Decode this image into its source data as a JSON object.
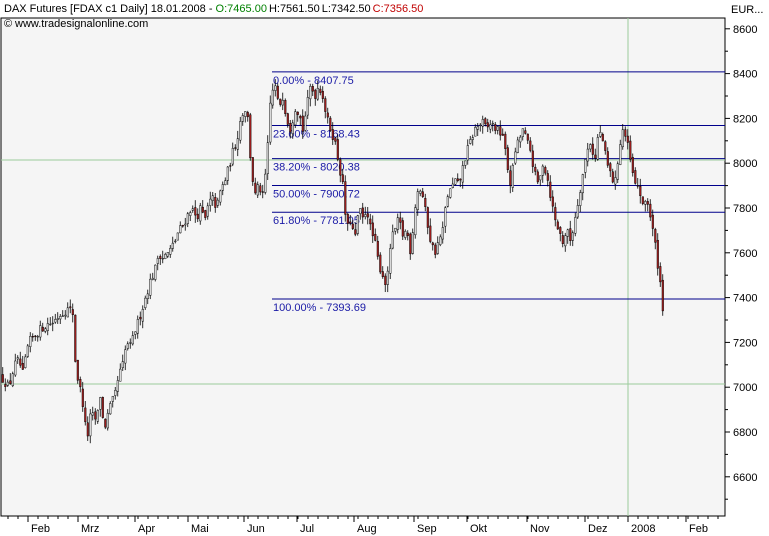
{
  "header": {
    "instrument": "DAX Futures [FDAX c1  Daily] 18.01.2008 - ",
    "open_label": "O:",
    "open": "7465.00",
    "high_label": "H:",
    "high": "7561.50",
    "low_label": "L:",
    "low": "7342.50",
    "close_label": "C:",
    "close": "7356.50",
    "watermark": "www.tradesignalonline.com",
    "currency": "EUR..."
  },
  "colors": {
    "up": "#ffffff",
    "down": "#b22222",
    "fib": "#00008b",
    "label": "#1a1aa6",
    "plot_bg": "#f5f5f5",
    "grid": "#9ccc9c"
  },
  "chart_data": {
    "type": "candlestick",
    "title": "DAX Futures [FDAX c1  Daily]",
    "ylim": [
      6400,
      8650
    ],
    "y_ticks": [
      6600,
      6800,
      7000,
      7200,
      7400,
      7600,
      7800,
      8000,
      8200,
      8400,
      8600
    ],
    "x_ticks": [
      "Feb",
      "Mrz",
      "Apr",
      "Mai",
      "Jun",
      "Jul",
      "Aug",
      "Sep",
      "Okt",
      "Nov",
      "Dez",
      "2008",
      "Feb"
    ],
    "grid_lines": [
      7000,
      8000
    ],
    "fibonacci": [
      {
        "label": "0.00% - 8407.75",
        "value": 8407.75
      },
      {
        "label": "23.60% - 8168.43",
        "value": 8168.43
      },
      {
        "label": "38.20% - 8020.38",
        "value": 8020.38
      },
      {
        "label": "50.00% - 7900.72",
        "value": 7900.72
      },
      {
        "label": "61.80% - 7781.05",
        "value": 7781.05
      },
      {
        "label": "100.00% - 7393.69",
        "value": 7393.69
      }
    ],
    "path": [
      [
        0,
        7050
      ],
      [
        8,
        7000
      ],
      [
        14,
        7100
      ],
      [
        18,
        7120
      ],
      [
        22,
        7060
      ],
      [
        28,
        7200
      ],
      [
        34,
        7230
      ],
      [
        40,
        7260
      ],
      [
        46,
        7280
      ],
      [
        52,
        7290
      ],
      [
        58,
        7320
      ],
      [
        64,
        7340
      ],
      [
        68,
        7350
      ],
      [
        72,
        7330
      ],
      [
        75,
        7080
      ],
      [
        80,
        6980
      ],
      [
        83,
        6900
      ],
      [
        86,
        6760
      ],
      [
        90,
        6880
      ],
      [
        96,
        6850
      ],
      [
        100,
        6980
      ],
      [
        103,
        6800
      ],
      [
        106,
        6860
      ],
      [
        110,
        6920
      ],
      [
        114,
        6960
      ],
      [
        118,
        7050
      ],
      [
        122,
        7100
      ],
      [
        126,
        7200
      ],
      [
        130,
        7180
      ],
      [
        134,
        7250
      ],
      [
        138,
        7300
      ],
      [
        142,
        7360
      ],
      [
        146,
        7420
      ],
      [
        150,
        7480
      ],
      [
        154,
        7520
      ],
      [
        158,
        7600
      ],
      [
        162,
        7580
      ],
      [
        168,
        7600
      ],
      [
        174,
        7650
      ],
      [
        178,
        7700
      ],
      [
        182,
        7720
      ],
      [
        186,
        7760
      ],
      [
        190,
        7800
      ],
      [
        196,
        7760
      ],
      [
        200,
        7800
      ],
      [
        204,
        7740
      ],
      [
        208,
        7820
      ],
      [
        212,
        7840
      ],
      [
        216,
        7800
      ],
      [
        220,
        7880
      ],
      [
        224,
        7920
      ],
      [
        228,
        7980
      ],
      [
        232,
        8050
      ],
      [
        236,
        8100
      ],
      [
        240,
        8200
      ],
      [
        244,
        8250
      ],
      [
        247,
        8200
      ],
      [
        250,
        8000
      ],
      [
        254,
        7850
      ],
      [
        258,
        7900
      ],
      [
        262,
        7850
      ],
      [
        266,
        8000
      ],
      [
        270,
        8300
      ],
      [
        274,
        8350
      ],
      [
        278,
        8250
      ],
      [
        282,
        8300
      ],
      [
        286,
        8200
      ],
      [
        290,
        8150
      ],
      [
        294,
        8250
      ],
      [
        298,
        8230
      ],
      [
        302,
        8150
      ],
      [
        306,
        8250
      ],
      [
        310,
        8350
      ],
      [
        314,
        8300
      ],
      [
        318,
        8350
      ],
      [
        322,
        8300
      ],
      [
        326,
        8200
      ],
      [
        330,
        8150
      ],
      [
        334,
        8100
      ],
      [
        338,
        8000
      ],
      [
        342,
        7900
      ],
      [
        346,
        7700
      ],
      [
        350,
        7750
      ],
      [
        354,
        7650
      ],
      [
        358,
        7800
      ],
      [
        362,
        7750
      ],
      [
        366,
        7800
      ],
      [
        370,
        7700
      ],
      [
        374,
        7650
      ],
      [
        378,
        7550
      ],
      [
        382,
        7500
      ],
      [
        386,
        7450
      ],
      [
        390,
        7650
      ],
      [
        394,
        7700
      ],
      [
        398,
        7750
      ],
      [
        402,
        7680
      ],
      [
        406,
        7700
      ],
      [
        410,
        7600
      ],
      [
        414,
        7800
      ],
      [
        418,
        7900
      ],
      [
        422,
        7850
      ],
      [
        426,
        7750
      ],
      [
        430,
        7650
      ],
      [
        434,
        7600
      ],
      [
        438,
        7650
      ],
      [
        442,
        7700
      ],
      [
        446,
        7850
      ],
      [
        450,
        7880
      ],
      [
        454,
        7920
      ],
      [
        458,
        7900
      ],
      [
        462,
        7980
      ],
      [
        466,
        8050
      ],
      [
        470,
        8100
      ],
      [
        474,
        8150
      ],
      [
        478,
        8170
      ],
      [
        482,
        8180
      ],
      [
        486,
        8150
      ],
      [
        490,
        8180
      ],
      [
        494,
        8160
      ],
      [
        498,
        8140
      ],
      [
        502,
        8130
      ],
      [
        506,
        8000
      ],
      [
        510,
        7900
      ],
      [
        514,
        8050
      ],
      [
        518,
        8100
      ],
      [
        522,
        8150
      ],
      [
        526,
        8100
      ],
      [
        530,
        8050
      ],
      [
        534,
        7950
      ],
      [
        538,
        7900
      ],
      [
        542,
        8000
      ],
      [
        546,
        7950
      ],
      [
        550,
        7850
      ],
      [
        554,
        7750
      ],
      [
        558,
        7700
      ],
      [
        562,
        7650
      ],
      [
        566,
        7700
      ],
      [
        570,
        7650
      ],
      [
        574,
        7750
      ],
      [
        578,
        7850
      ],
      [
        582,
        7950
      ],
      [
        586,
        8050
      ],
      [
        590,
        8100
      ],
      [
        594,
        8000
      ],
      [
        598,
        8150
      ],
      [
        602,
        8100
      ],
      [
        606,
        8000
      ],
      [
        610,
        7950
      ],
      [
        614,
        7900
      ],
      [
        618,
        8050
      ],
      [
        622,
        8150
      ],
      [
        626,
        8100
      ],
      [
        630,
        8000
      ],
      [
        634,
        7900
      ],
      [
        638,
        7900
      ],
      [
        642,
        7800
      ],
      [
        646,
        7850
      ],
      [
        650,
        7750
      ],
      [
        654,
        7650
      ],
      [
        657,
        7550
      ],
      [
        660,
        7450
      ],
      [
        662,
        7356.5
      ]
    ]
  }
}
